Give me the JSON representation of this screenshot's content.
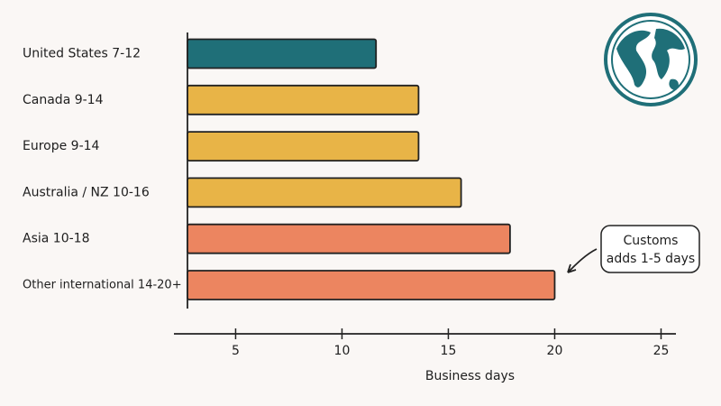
{
  "chart_data": {
    "type": "hbar",
    "categories": [
      "United States 7-12",
      "Canada  9-14",
      "Europe  9-14",
      "Australia / NZ  10-16",
      "Asia  10-18",
      "Other international 14-20+"
    ],
    "values": [
      11.6,
      13.6,
      13.6,
      15.6,
      17.9,
      20
    ],
    "colors": [
      "#1f6f78",
      "#e8b447",
      "#e8b447",
      "#e8b447",
      "#ec8560",
      "#ec8560"
    ],
    "x_label": "Business days",
    "xlim": [
      2.1,
      25.7
    ],
    "xticks": [
      5,
      10,
      15,
      20,
      25
    ],
    "annotation": [
      "Customs",
      "adds 1-5 days"
    ]
  }
}
